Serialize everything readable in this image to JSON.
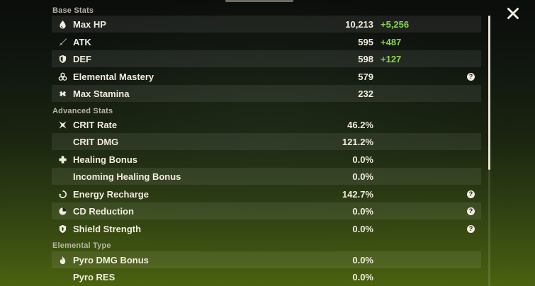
{
  "colors": {
    "text": "#f2ece0",
    "muted": "#b9b4a8",
    "bonus": "#8bd450",
    "row_shade": "rgba(255,255,255,0.075)"
  },
  "sections": {
    "base": {
      "title": "Base Stats",
      "rows": [
        {
          "icon": "hp-drop-icon",
          "label": "Max HP",
          "value": "10,213",
          "bonus": "+5,256"
        },
        {
          "icon": "atk-sword-icon",
          "label": "ATK",
          "value": "595",
          "bonus": "+487"
        },
        {
          "icon": "def-shield-icon",
          "label": "DEF",
          "value": "598",
          "bonus": "+127"
        },
        {
          "icon": "elemental-mastery-icon",
          "label": "Elemental Mastery",
          "value": "579",
          "help": "?"
        },
        {
          "icon": "stamina-icon",
          "label": "Max Stamina",
          "value": "232"
        }
      ]
    },
    "advanced": {
      "title": "Advanced Stats",
      "rows": [
        {
          "icon": "crit-rate-icon",
          "label": "CRIT Rate",
          "value": "46.2%"
        },
        {
          "icon": "",
          "label": "CRIT DMG",
          "value": "121.2%"
        },
        {
          "icon": "healing-cross-icon",
          "label": "Healing Bonus",
          "value": "0.0%"
        },
        {
          "icon": "",
          "label": "Incoming Healing Bonus",
          "value": "0.0%"
        },
        {
          "icon": "energy-recharge-icon",
          "label": "Energy Recharge",
          "value": "142.7%",
          "help": "?"
        },
        {
          "icon": "cd-reduction-icon",
          "label": "CD Reduction",
          "value": "0.0%",
          "help": "?"
        },
        {
          "icon": "shield-strength-icon",
          "label": "Shield Strength",
          "value": "0.0%",
          "help": "?"
        }
      ]
    },
    "elemental": {
      "title": "Elemental Type",
      "rows": [
        {
          "icon": "pyro-flame-icon",
          "label": "Pyro DMG Bonus",
          "value": "0.0%"
        },
        {
          "icon": "",
          "label": "Pyro RES",
          "value": "0.0%"
        }
      ]
    }
  },
  "close_button": {
    "icon": "close-icon"
  }
}
